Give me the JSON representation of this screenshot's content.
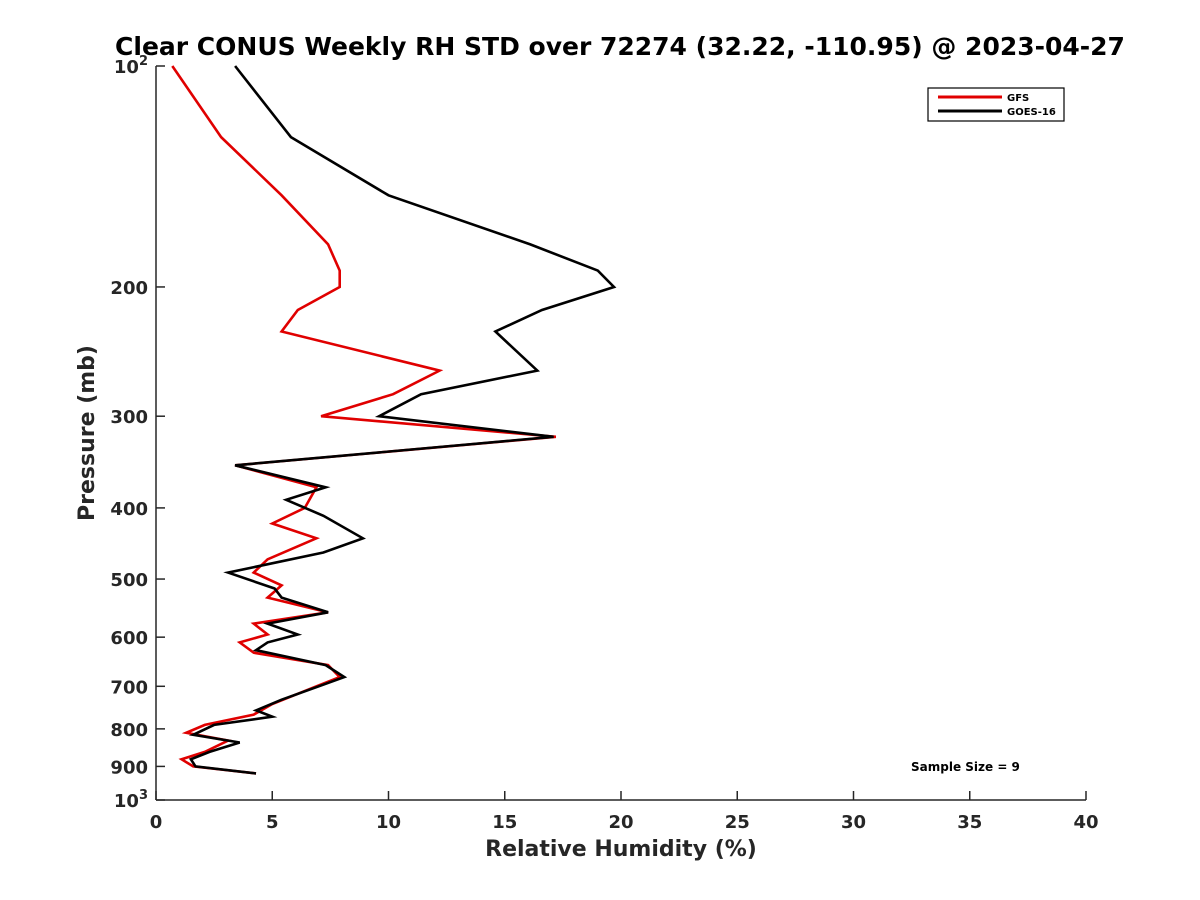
{
  "chart_data": {
    "type": "line",
    "title": "Clear CONUS Weekly RH STD over 72274 (32.22, -110.95) @ 2023-04-27",
    "xlabel": "Relative Humidity (%)",
    "ylabel": "Pressure (mb)",
    "xlim": [
      0,
      40
    ],
    "ylim": [
      100,
      1000
    ],
    "y_scale": "log",
    "y_reversed": true,
    "grid": false,
    "legend_position": "top-right",
    "x_ticks": [
      0,
      5,
      10,
      15,
      20,
      25,
      30,
      35,
      40
    ],
    "x_tick_labels": [
      "0",
      "5",
      "10",
      "15",
      "20",
      "25",
      "30",
      "35",
      "40"
    ],
    "y_ticks": [
      100,
      200,
      300,
      400,
      500,
      600,
      700,
      800,
      900,
      1000
    ],
    "y_tick_labels": [
      {
        "base": "10",
        "exp": "2"
      },
      {
        "base": "200",
        "exp": ""
      },
      {
        "base": "300",
        "exp": ""
      },
      {
        "base": "400",
        "exp": ""
      },
      {
        "base": "500",
        "exp": ""
      },
      {
        "base": "600",
        "exp": ""
      },
      {
        "base": "700",
        "exp": ""
      },
      {
        "base": "800",
        "exp": ""
      },
      {
        "base": "900",
        "exp": ""
      },
      {
        "base": "10",
        "exp": "3"
      }
    ],
    "annotation": "Sample Size = 9",
    "series": [
      {
        "name": "GFS",
        "color": "#e00000",
        "points": [
          [
            0.7,
            100
          ],
          [
            2.8,
            125
          ],
          [
            5.4,
            150
          ],
          [
            7.4,
            175
          ],
          [
            7.9,
            190
          ],
          [
            7.9,
            200
          ],
          [
            6.1,
            215
          ],
          [
            5.4,
            230
          ],
          [
            12.2,
            260
          ],
          [
            10.2,
            280
          ],
          [
            7.1,
            300
          ],
          [
            17.2,
            320
          ],
          [
            3.4,
            350
          ],
          [
            6.9,
            375
          ],
          [
            6.4,
            400
          ],
          [
            5.0,
            420
          ],
          [
            6.9,
            440
          ],
          [
            4.8,
            470
          ],
          [
            4.2,
            490
          ],
          [
            5.4,
            510
          ],
          [
            4.8,
            530
          ],
          [
            7.4,
            555
          ],
          [
            4.2,
            575
          ],
          [
            4.8,
            595
          ],
          [
            3.6,
            610
          ],
          [
            4.2,
            630
          ],
          [
            7.4,
            655
          ],
          [
            7.9,
            680
          ],
          [
            6.9,
            700
          ],
          [
            5.0,
            740
          ],
          [
            4.2,
            765
          ],
          [
            2.1,
            790
          ],
          [
            1.3,
            810
          ],
          [
            3.1,
            830
          ],
          [
            2.1,
            860
          ],
          [
            1.1,
            880
          ],
          [
            1.6,
            900
          ],
          [
            4.3,
            920
          ]
        ]
      },
      {
        "name": "GOES-16",
        "color": "#000000",
        "points": [
          [
            3.4,
            100
          ],
          [
            5.8,
            125
          ],
          [
            10.0,
            150
          ],
          [
            16.1,
            175
          ],
          [
            19.0,
            190
          ],
          [
            19.7,
            200
          ],
          [
            16.6,
            215
          ],
          [
            14.6,
            230
          ],
          [
            16.4,
            260
          ],
          [
            11.4,
            280
          ],
          [
            9.6,
            300
          ],
          [
            17.1,
            320
          ],
          [
            3.4,
            350
          ],
          [
            7.3,
            375
          ],
          [
            5.6,
            390
          ],
          [
            7.2,
            410
          ],
          [
            8.9,
            440
          ],
          [
            7.2,
            460
          ],
          [
            3.1,
            490
          ],
          [
            5.1,
            515
          ],
          [
            5.4,
            530
          ],
          [
            7.4,
            555
          ],
          [
            4.8,
            575
          ],
          [
            6.1,
            595
          ],
          [
            4.8,
            610
          ],
          [
            4.3,
            625
          ],
          [
            7.3,
            655
          ],
          [
            8.1,
            680
          ],
          [
            7.0,
            700
          ],
          [
            5.4,
            730
          ],
          [
            4.3,
            755
          ],
          [
            5.0,
            770
          ],
          [
            2.5,
            790
          ],
          [
            1.6,
            815
          ],
          [
            3.6,
            835
          ],
          [
            2.3,
            860
          ],
          [
            1.5,
            880
          ],
          [
            1.7,
            900
          ],
          [
            4.3,
            920
          ]
        ]
      }
    ]
  }
}
